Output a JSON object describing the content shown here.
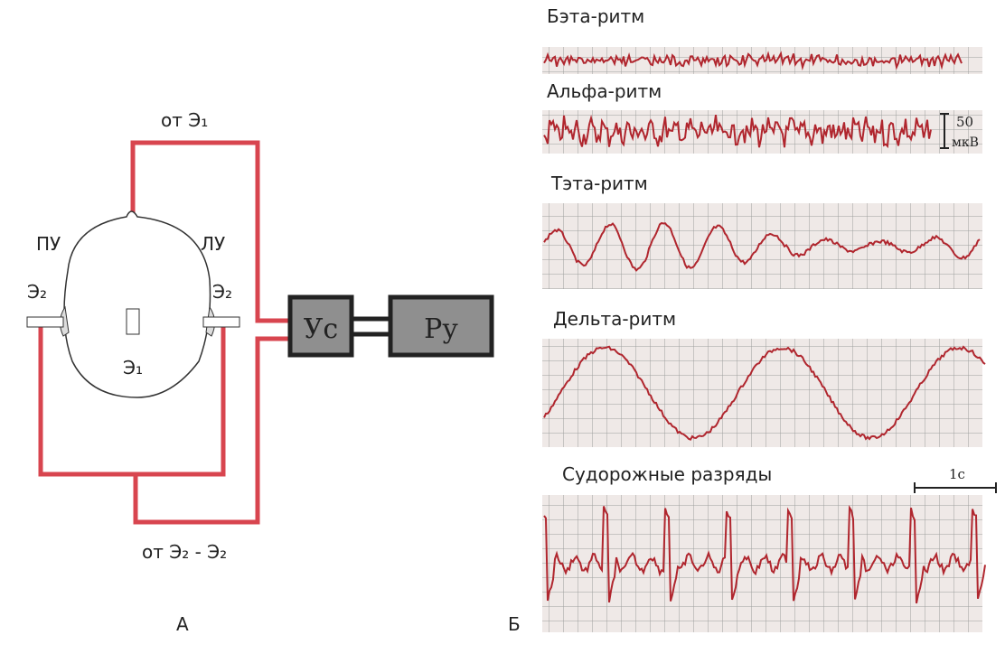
{
  "scheme": {
    "top_wire_label": "от Э₁",
    "left_label": "ПУ",
    "right_label": "ЛУ",
    "left_electrode": "Э₂",
    "right_electrode": "Э₂",
    "center_electrode": "Э₁",
    "amplifier": "Ус",
    "recorder": "Ру",
    "bottom_wire_label": "от Э₂ - Э₂",
    "panel_label": "А"
  },
  "recordings": {
    "panel_label": "Б",
    "traces": [
      {
        "title": "Бэта-ритм"
      },
      {
        "title": "Альфа-ритм"
      },
      {
        "title": "Тэта-ритм"
      },
      {
        "title": "Дельта-ритм"
      },
      {
        "title": "Судорожные разряды"
      }
    ],
    "amplitude_scale": {
      "value": "50",
      "unit": "мкВ"
    },
    "time_scale": "1с"
  }
}
